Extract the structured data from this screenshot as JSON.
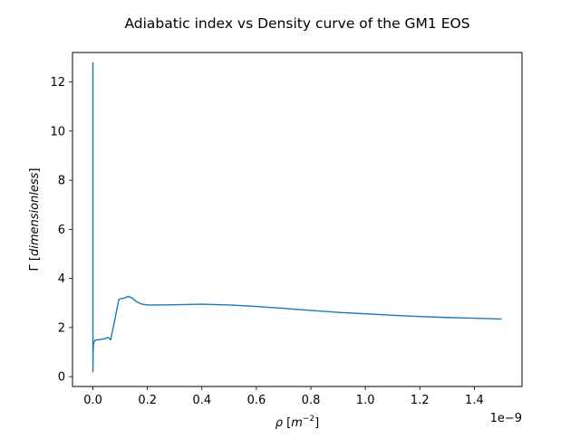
{
  "chart_data": {
    "type": "line",
    "title": "Adiabatic index vs Density curve of the GM1 EOS",
    "xlabel": {
      "symbol": "ρ",
      "unit_base": "m",
      "unit_exp": "−2"
    },
    "ylabel": {
      "symbol": "Γ",
      "unit": "dimensionless"
    },
    "x_offset_label": "1e−9",
    "xlim": [
      -0.075,
      1.575
    ],
    "ylim": [
      -0.4,
      13.2
    ],
    "xticks": [
      {
        "value": 0.0,
        "label": "0.0"
      },
      {
        "value": 0.2,
        "label": "0.2"
      },
      {
        "value": 0.4,
        "label": "0.4"
      },
      {
        "value": 0.6,
        "label": "0.6"
      },
      {
        "value": 0.8,
        "label": "0.8"
      },
      {
        "value": 1.0,
        "label": "1.0"
      },
      {
        "value": 1.2,
        "label": "1.2"
      },
      {
        "value": 1.4,
        "label": "1.4"
      }
    ],
    "yticks": [
      {
        "value": 0,
        "label": "0"
      },
      {
        "value": 2,
        "label": "2"
      },
      {
        "value": 4,
        "label": "4"
      },
      {
        "value": 6,
        "label": "6"
      },
      {
        "value": 8,
        "label": "8"
      },
      {
        "value": 10,
        "label": "10"
      },
      {
        "value": 12,
        "label": "12"
      }
    ],
    "grid": false,
    "series": [
      {
        "color": "#1f77b4",
        "x": [
          0.0,
          0.0,
          0.0005,
          0.001,
          0.002,
          0.004,
          0.008,
          0.015,
          0.03,
          0.045,
          0.055,
          0.065,
          0.08,
          0.095,
          0.105,
          0.115,
          0.13,
          0.145,
          0.16,
          0.18,
          0.2,
          0.25,
          0.3,
          0.4,
          0.5,
          0.6,
          0.7,
          0.8,
          0.9,
          1.0,
          1.1,
          1.2,
          1.3,
          1.4,
          1.5
        ],
        "y": [
          12.8,
          0.2,
          0.7,
          1.1,
          1.3,
          1.42,
          1.48,
          1.5,
          1.52,
          1.55,
          1.6,
          1.5,
          2.3,
          3.15,
          3.18,
          3.2,
          3.27,
          3.2,
          3.05,
          2.95,
          2.92,
          2.92,
          2.93,
          2.95,
          2.92,
          2.86,
          2.78,
          2.7,
          2.62,
          2.56,
          2.5,
          2.45,
          2.41,
          2.38,
          2.35
        ]
      }
    ]
  }
}
